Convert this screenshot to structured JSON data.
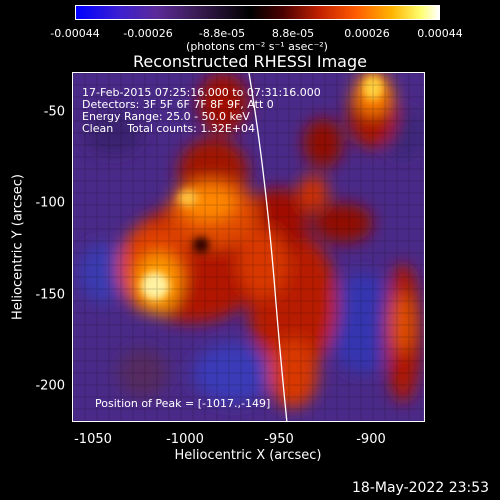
{
  "colorbar": {
    "ticks": [
      "-0.00044",
      "-0.00026",
      "-8.8e-05",
      "8.8e-05",
      "0.00026",
      "0.00044"
    ],
    "units": "(photons cm⁻² s⁻¹ asec⁻²)",
    "colors": [
      "#0000ff",
      "#5b2a99",
      "#000000",
      "#c02000",
      "#ff5a00",
      "#ffff70",
      "#ffffff"
    ]
  },
  "title": "Reconstructed RHESSI Image",
  "info": {
    "time_range": "17-Feb-2015 07:25:16.000 to 07:31:16.000",
    "detectors": "Detectors: 3F 5F 6F 7F 8F 9F, Att 0",
    "energy": "Energy Range: 25.0 - 50.0 keV",
    "method_counts": "Clean    Total counts: 1.32E+04",
    "peak": "Position of Peak = [-1017.,-149]"
  },
  "axes": {
    "xlabel": "Heliocentric X (arcsec)",
    "ylabel": "Heliocentric Y (arcsec)",
    "xticks": [
      "-1050",
      "-1000",
      "-950",
      "-900"
    ],
    "yticks": [
      "-50",
      "-100",
      "-150",
      "-200"
    ],
    "xlim": [
      -1070,
      -880
    ],
    "ylim": [
      -222,
      -30
    ]
  },
  "timestamp": "18-May-2022 23:53"
}
